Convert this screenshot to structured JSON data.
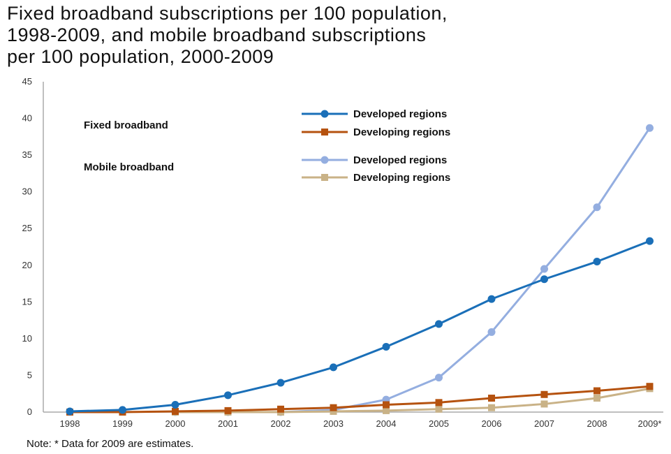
{
  "chart_data": {
    "type": "line",
    "title_lines": [
      "Fixed broadband subscriptions per 100 population,",
      "1998-2009, and mobile broadband subscriptions",
      "per 100 population, 2000-2009"
    ],
    "categories": [
      "1998",
      "1999",
      "2000",
      "2001",
      "2002",
      "2003",
      "2004",
      "2005",
      "2006",
      "2007",
      "2008",
      "2009*"
    ],
    "ylim": [
      0,
      45
    ],
    "yticks": [
      0,
      5,
      10,
      15,
      20,
      25,
      30,
      35,
      40,
      45
    ],
    "grid": false,
    "groups": [
      {
        "label": "Fixed broadband"
      },
      {
        "label": "Mobile broadband"
      }
    ],
    "series": [
      {
        "name": "Developed regions",
        "group": "Fixed broadband",
        "color": "#1a6fb8",
        "marker": "circle",
        "values": [
          0.1,
          0.3,
          1.0,
          2.3,
          4.0,
          6.1,
          8.9,
          12.0,
          15.4,
          18.1,
          20.5,
          23.3
        ]
      },
      {
        "name": "Developing regions",
        "group": "Fixed broadband",
        "color": "#b5520f",
        "marker": "square",
        "values": [
          0.0,
          0.0,
          0.1,
          0.2,
          0.4,
          0.6,
          1.0,
          1.3,
          1.9,
          2.4,
          2.9,
          3.5
        ]
      },
      {
        "name": "Developed regions",
        "group": "Mobile broadband",
        "color": "#94aee0",
        "marker": "circle",
        "values": [
          null,
          null,
          0.0,
          0.0,
          0.0,
          0.3,
          1.7,
          4.7,
          10.9,
          19.5,
          27.9,
          38.7
        ]
      },
      {
        "name": "Developing regions",
        "group": "Mobile broadband",
        "color": "#c9b287",
        "marker": "square",
        "values": [
          null,
          null,
          0.0,
          0.0,
          0.0,
          0.1,
          0.2,
          0.4,
          0.6,
          1.1,
          1.9,
          3.2
        ]
      }
    ],
    "legend_position": "upper-left-center"
  },
  "note": "Note: * Data for 2009 are estimates."
}
